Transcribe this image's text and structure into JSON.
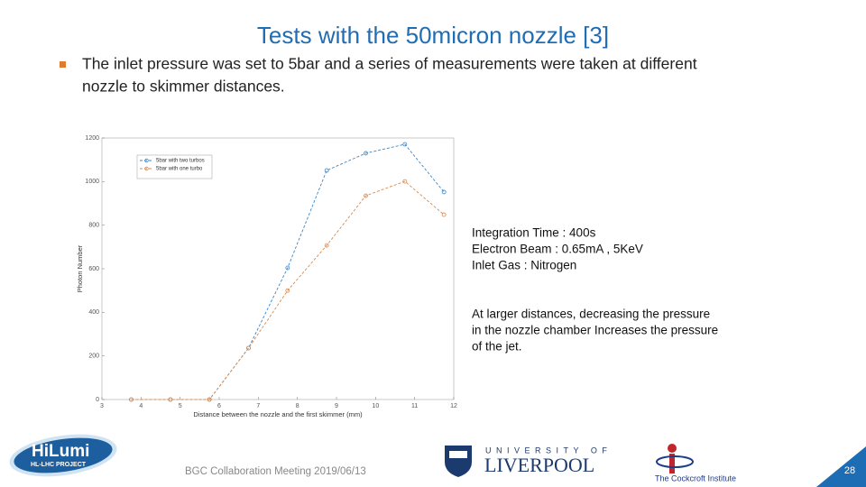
{
  "title": "Tests with the 50micron nozzle [3]",
  "bullet": [
    "The inlet pressure was set to 5bar and a series of measurements were taken at different",
    "nozzle to skimmer distances."
  ],
  "chart_data": {
    "type": "line",
    "x_label": "Distance between the nozzle and the first skimmer (mm)",
    "y_label": "Photon Number",
    "x": [
      3.75,
      4.75,
      5.75,
      6.75,
      7.75,
      8.75,
      9.75,
      10.75,
      11.75
    ],
    "series": [
      {
        "name": "5bar with two turbos",
        "color": "#3a86c8",
        "values": [
          0,
          0,
          0,
          236,
          604,
          1051,
          1130,
          1171,
          952
        ]
      },
      {
        "name": "5bar with one turbo",
        "color": "#d9884a",
        "values": [
          0,
          0,
          0,
          236,
          500,
          707,
          935,
          1001,
          848
        ]
      }
    ],
    "xlim": [
      3,
      12
    ],
    "xticks": [
      3,
      4,
      5,
      6,
      7,
      8,
      9,
      10,
      11,
      12
    ],
    "ylim": [
      0,
      1200
    ],
    "yticks": [
      0,
      200,
      400,
      600,
      800,
      1000,
      1200
    ],
    "legend": "upper left",
    "grid": false
  },
  "notes": [
    [
      "Integration Time : 400s",
      "Electron Beam :  0.65mA , 5KeV",
      "Inlet Gas :  Nitrogen"
    ],
    [
      "At larger distances, decreasing the pressure",
      "in the nozzle chamber Increases the pressure",
      "of the jet."
    ]
  ],
  "footer": "BGC Collaboration Meeting  2019/06/13",
  "page_number": "28",
  "logos": {
    "hilumi": "HiLumi",
    "hilumi_sub": "HL-LHC PROJECT",
    "liverpool_top": "UNIVERSITY OF",
    "liverpool": "LIVERPOOL",
    "cockcroft": "The Cockcroft Institute"
  }
}
